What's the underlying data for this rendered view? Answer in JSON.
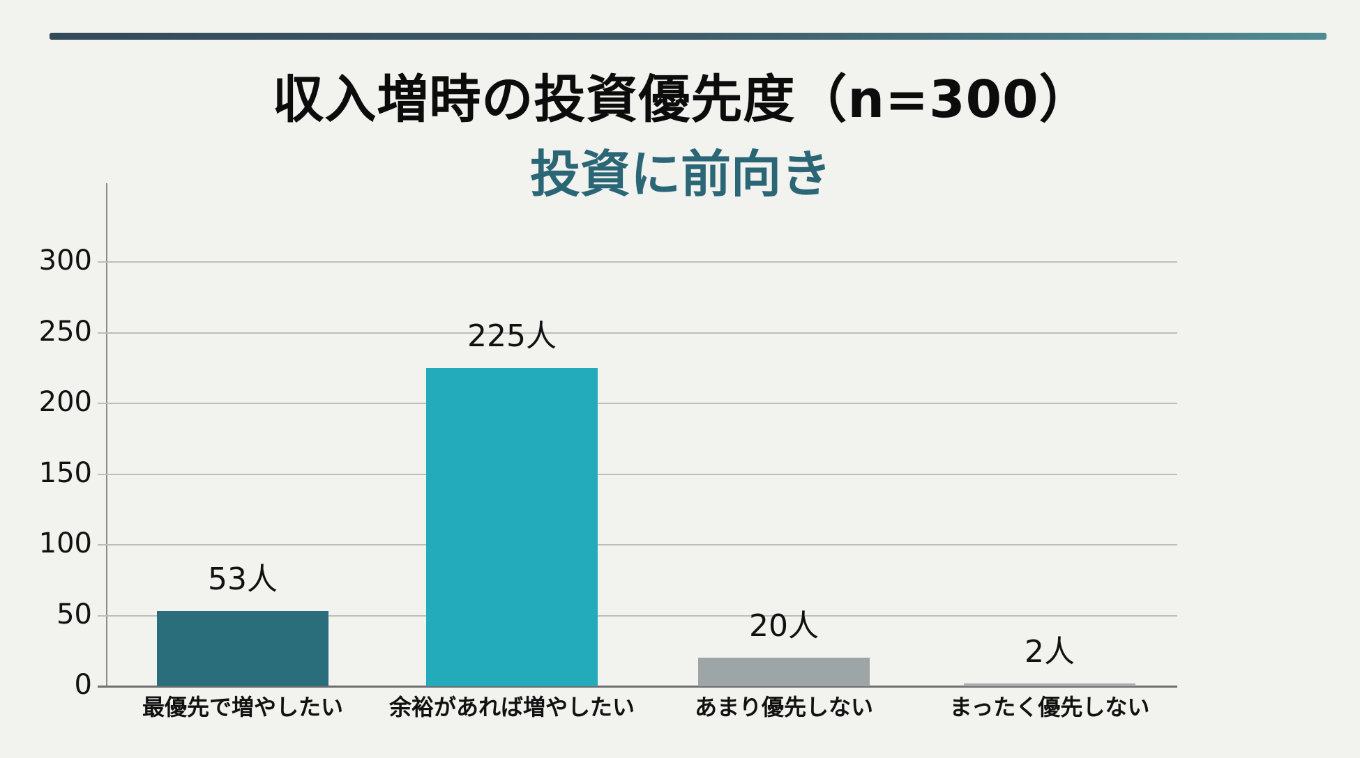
{
  "header": {
    "title": "収入増時の投資優先度（n=300）",
    "subtitle": "投資に前向き"
  },
  "colors": {
    "background": "#f2f2ee",
    "title": "#0c0c0c",
    "subtitle": "#2b6677",
    "rule_start": "#33495a",
    "rule_end": "#4f8a93"
  },
  "chart_data": {
    "type": "bar",
    "title": "収入増時の投資優先度（n=300）",
    "subtitle": "投資に前向き",
    "categories": [
      "最優先で増やしたい",
      "余裕があれば増やしたい",
      "あまり優先しない",
      "まったく優先しない"
    ],
    "values": [
      53,
      225,
      20,
      2
    ],
    "value_labels": [
      "53人",
      "225人",
      "20人",
      "2人"
    ],
    "bar_colors": [
      "#2b6e7b",
      "#24abbb",
      "#9ea5a7",
      "#a8acad"
    ],
    "xlabel": "",
    "ylabel": "",
    "ylim": [
      0,
      300
    ],
    "yticks": [
      0,
      50,
      100,
      150,
      200,
      250,
      300
    ],
    "ytick_labels": [
      "0",
      "50",
      "100",
      "150",
      "200",
      "250",
      "300"
    ],
    "grid": true,
    "legend": null
  }
}
